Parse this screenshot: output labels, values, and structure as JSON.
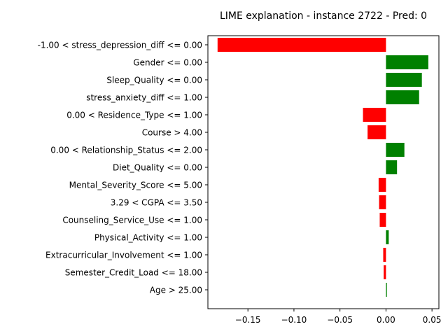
{
  "chart_data": {
    "type": "bar",
    "orientation": "horizontal",
    "title": "LIME explanation - instance 2722 - Pred: 0",
    "xlabel": "",
    "ylabel": "",
    "xlim": [
      -0.1935,
      0.0575
    ],
    "xticks": [
      -0.15,
      -0.1,
      -0.05,
      0.0,
      0.05
    ],
    "xtick_labels": [
      "−0.15",
      "−0.10",
      "−0.05",
      "0.00",
      "0.05"
    ],
    "grid": false,
    "positive_color": "#008000",
    "negative_color": "#ff0000",
    "categories": [
      "-1.00 < stress_depression_diff <= 0.00",
      "Gender <= 0.00",
      "Sleep_Quality <= 0.00",
      "stress_anxiety_diff <= 1.00",
      "0.00 < Residence_Type <= 1.00",
      "Course > 4.00",
      "0.00 < Relationship_Status <= 2.00",
      "Diet_Quality <= 0.00",
      "Mental_Severity_Score <= 5.00",
      "3.29 < CGPA <= 3.50",
      "Counseling_Service_Use <= 1.00",
      "Physical_Activity <= 1.00",
      "Extracurricular_Involvement <= 1.00",
      "Semester_Credit_Load <= 18.00",
      "Age > 25.00"
    ],
    "values": [
      -0.183,
      0.046,
      0.039,
      0.036,
      -0.025,
      -0.02,
      0.02,
      0.012,
      -0.008,
      -0.0075,
      -0.0068,
      0.003,
      -0.003,
      -0.0025,
      0.001
    ]
  }
}
